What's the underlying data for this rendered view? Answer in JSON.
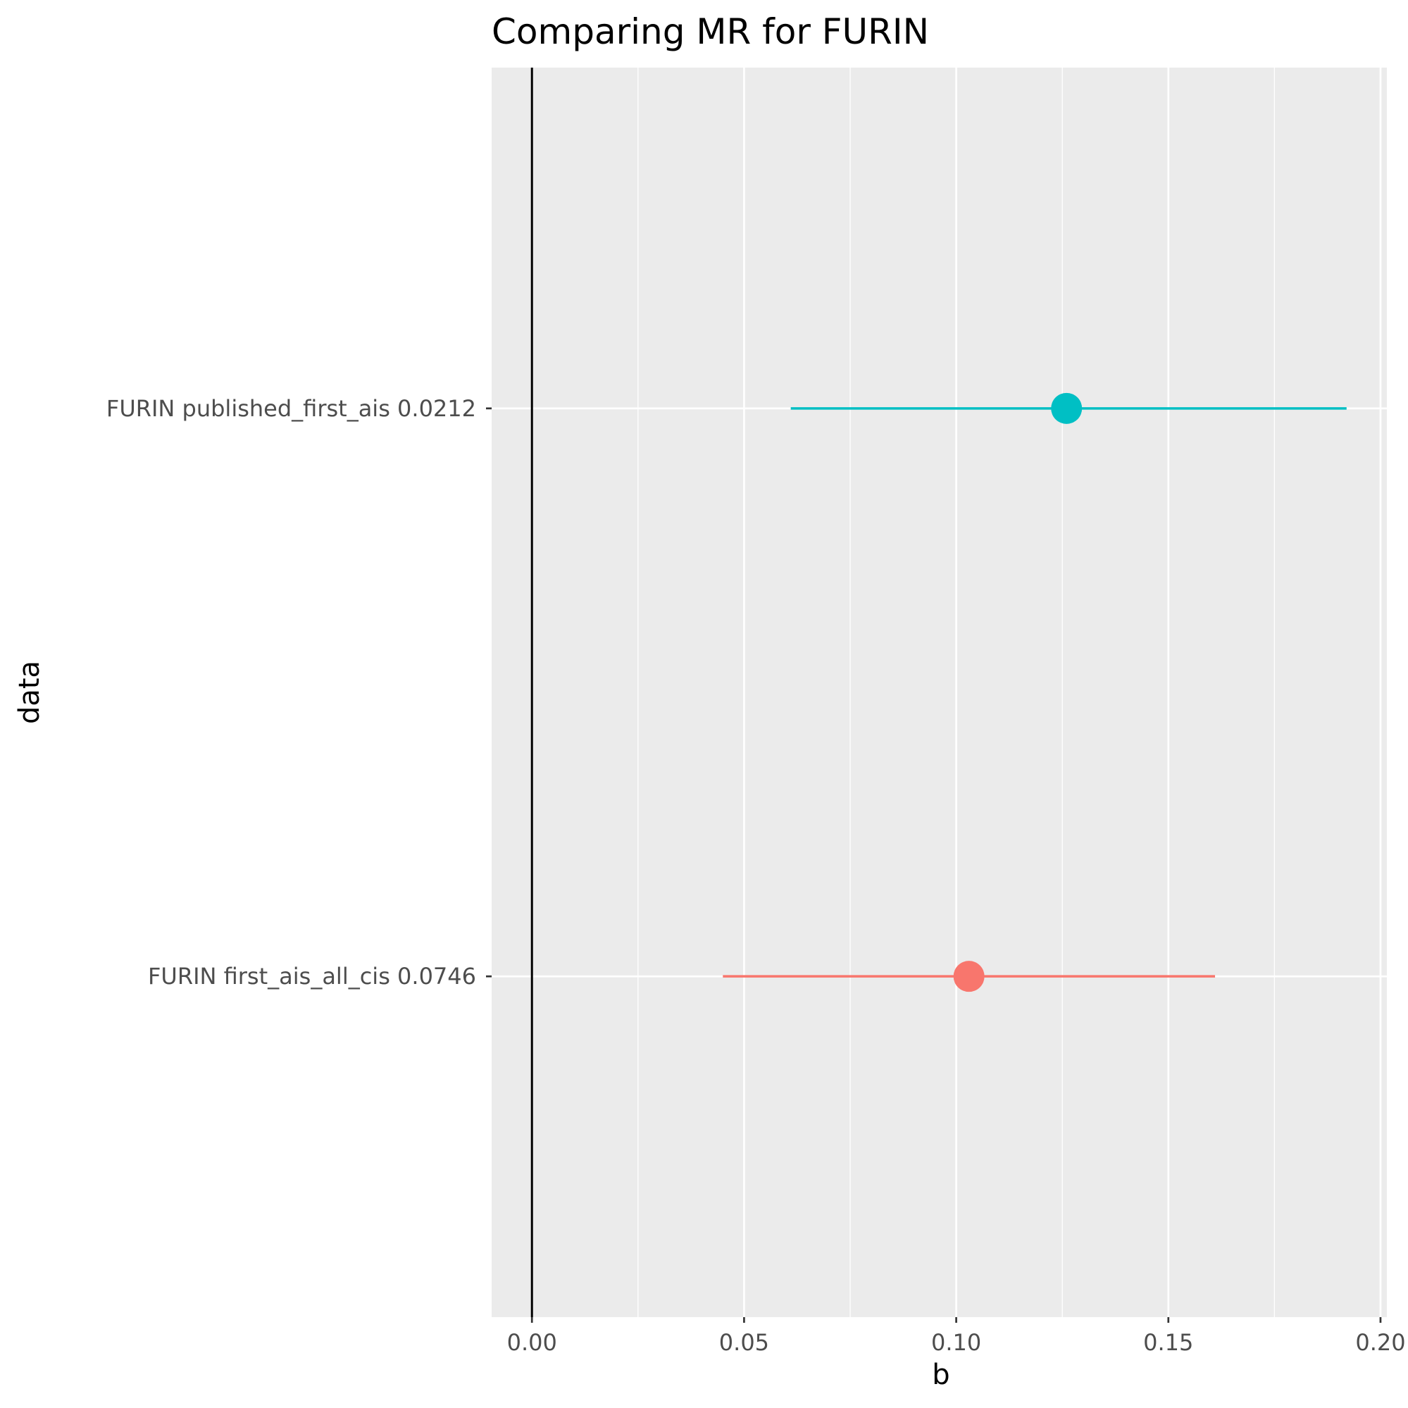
{
  "chart_data": {
    "type": "forest",
    "title": "Comparing MR for FURIN",
    "xlabel": "b",
    "ylabel": "data",
    "xlim": [
      -0.0095,
      0.2015
    ],
    "x_ticks": [
      0.0,
      0.05,
      0.1,
      0.15,
      0.2
    ],
    "x_tick_labels": [
      "0.00",
      "0.05",
      "0.10",
      "0.15",
      "0.20"
    ],
    "reference_line": 0,
    "grid": true,
    "categories": [
      "FURIN first_ais_all_cis 0.0746",
      "FURIN published_first_ais 0.0212"
    ],
    "series": [
      {
        "category": "FURIN first_ais_all_cis 0.0746",
        "b": 0.103,
        "lower": 0.045,
        "upper": 0.161,
        "color": "#F8766D"
      },
      {
        "category": "FURIN published_first_ais 0.0212",
        "b": 0.126,
        "lower": 0.061,
        "upper": 0.192,
        "color": "#00BFC4"
      }
    ]
  }
}
